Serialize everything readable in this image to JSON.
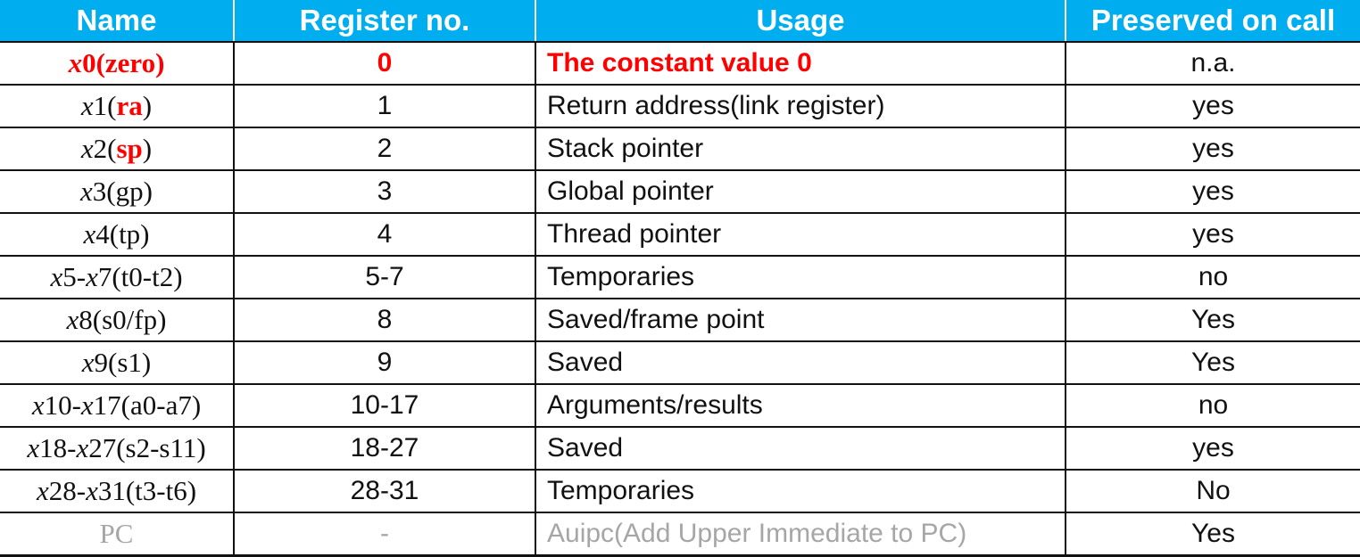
{
  "table": {
    "headers": [
      "Name",
      "Register no.",
      "Usage",
      "Preserved on call"
    ],
    "rows": [
      {
        "name_parts": [
          [
            "x",
            "i"
          ],
          [
            "0",
            "r"
          ],
          [
            "(zero)",
            "r"
          ]
        ],
        "reg": "0",
        "usage": "The constant value 0",
        "preserved": "n.a."
      },
      {
        "name_parts": [
          [
            "x",
            "i"
          ],
          [
            "1(",
            "n"
          ],
          [
            "ra",
            "h"
          ],
          [
            ")",
            "n"
          ]
        ],
        "reg": "1",
        "usage": "Return address(link register)",
        "preserved": "yes"
      },
      {
        "name_parts": [
          [
            "x",
            "i"
          ],
          [
            "2(",
            "n"
          ],
          [
            "sp",
            "h"
          ],
          [
            ")",
            "n"
          ]
        ],
        "reg": "2",
        "usage": "Stack pointer",
        "preserved": "yes"
      },
      {
        "name_parts": [
          [
            "x",
            "i"
          ],
          [
            "3(gp)",
            "n"
          ]
        ],
        "reg": "3",
        "usage": "Global pointer",
        "preserved": "yes"
      },
      {
        "name_parts": [
          [
            "x",
            "i"
          ],
          [
            "4(tp)",
            "n"
          ]
        ],
        "reg": "4",
        "usage": "Thread pointer",
        "preserved": "yes"
      },
      {
        "name_parts": [
          [
            "x",
            "i"
          ],
          [
            "5-",
            "n"
          ],
          [
            "x",
            "i"
          ],
          [
            "7(t0-t2)",
            "n"
          ]
        ],
        "reg": "5-7",
        "usage": "Temporaries",
        "preserved": "no"
      },
      {
        "name_parts": [
          [
            "x",
            "i"
          ],
          [
            "8(s0/fp)",
            "n"
          ]
        ],
        "reg": "8",
        "usage": "Saved/frame point",
        "preserved": "Yes"
      },
      {
        "name_parts": [
          [
            "x",
            "i"
          ],
          [
            "9(s1)",
            "n"
          ]
        ],
        "reg": "9",
        "usage": "Saved",
        "preserved": "Yes"
      },
      {
        "name_parts": [
          [
            "x",
            "i"
          ],
          [
            "10-",
            "n"
          ],
          [
            "x",
            "i"
          ],
          [
            "17(a0-a7)",
            "n"
          ]
        ],
        "reg": "10-17",
        "usage": "Arguments/results",
        "preserved": "no"
      },
      {
        "name_parts": [
          [
            "x",
            "i"
          ],
          [
            "18-",
            "n"
          ],
          [
            "x",
            "i"
          ],
          [
            "27(s2-s11)",
            "n"
          ]
        ],
        "reg": "18-27",
        "usage": "Saved",
        "preserved": "yes"
      },
      {
        "name_parts": [
          [
            "x",
            "i"
          ],
          [
            "28-",
            "n"
          ],
          [
            "x",
            "i"
          ],
          [
            "31(t3-t6)",
            "n"
          ]
        ],
        "reg": "28-31",
        "usage": "Temporaries",
        "preserved": "No"
      },
      {
        "name_parts": [
          [
            "PC",
            "n"
          ]
        ],
        "reg": "-",
        "usage": "Auipc(Add Upper Immediate to PC)",
        "preserved": "Yes"
      }
    ]
  },
  "colors": {
    "header_bg": "#00aeef",
    "header_text": "#ffffff",
    "highlight_red": "#ff0000",
    "muted_gray": "#a6a6a6",
    "border": "#111111"
  }
}
